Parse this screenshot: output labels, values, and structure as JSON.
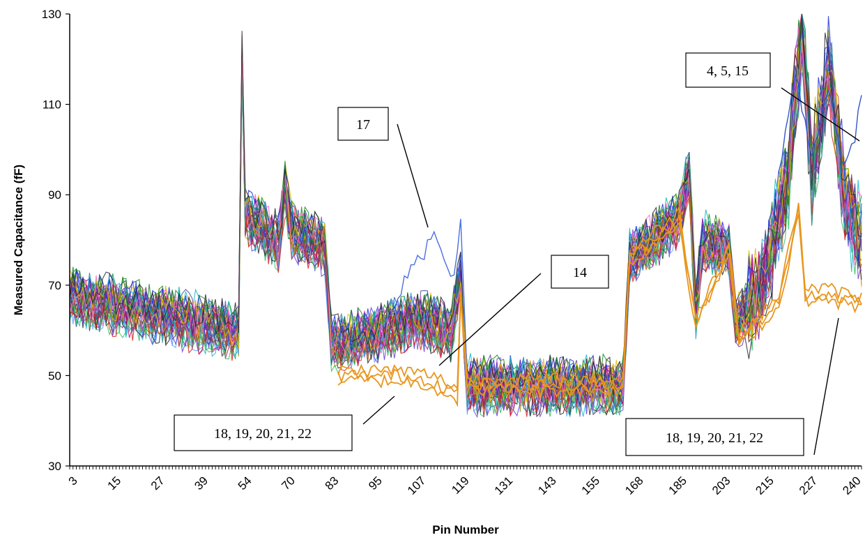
{
  "chart_data": {
    "type": "line",
    "title": "",
    "xlabel": "Pin Number",
    "ylabel": "Measured Capacitance (fF)",
    "xlim": [
      1,
      240
    ],
    "ylim": [
      30,
      130
    ],
    "y_ticks": [
      30,
      50,
      70,
      90,
      110,
      130
    ],
    "x_tick_labels": [
      "3",
      "15",
      "27",
      "39",
      "54",
      "70",
      "83",
      "95",
      "107",
      "119",
      "131",
      "143",
      "155",
      "168",
      "185",
      "203",
      "215",
      "227",
      "240"
    ],
    "grid": false,
    "legend": "none",
    "series_groups": [
      {
        "description_color": "mixed",
        "points": [
          [
            1,
            68
          ],
          [
            52,
            60
          ],
          [
            53,
            120
          ],
          [
            54,
            86
          ],
          [
            64,
            80
          ],
          [
            66,
            92
          ],
          [
            68,
            82
          ],
          [
            78,
            79
          ],
          [
            80,
            57
          ],
          [
            95,
            60
          ],
          [
            107,
            63
          ],
          [
            116,
            60
          ],
          [
            119,
            72
          ],
          [
            121,
            48
          ],
          [
            168,
            48
          ],
          [
            170,
            76
          ],
          [
            185,
            85
          ],
          [
            188,
            95
          ],
          [
            190,
            65
          ],
          [
            192,
            80
          ],
          [
            200,
            78
          ],
          [
            202,
            62
          ],
          [
            210,
            70
          ],
          [
            218,
            95
          ],
          [
            222,
            128
          ],
          [
            225,
            95
          ],
          [
            230,
            118
          ],
          [
            235,
            90
          ],
          [
            240,
            80
          ]
        ]
      }
    ],
    "highlighted_series": [
      {
        "name": "17",
        "color": "#4a6fe0",
        "points": [
          [
            96,
            62
          ],
          [
            100,
            68
          ],
          [
            104,
            76
          ],
          [
            108,
            78
          ],
          [
            111,
            84
          ],
          [
            114,
            77
          ],
          [
            117,
            72
          ],
          [
            119,
            86
          ],
          [
            121,
            50
          ]
        ]
      },
      {
        "name": "4, 5, 15",
        "color": "#3355cc",
        "points": [
          [
            215,
            96
          ],
          [
            220,
            118
          ],
          [
            225,
            100
          ],
          [
            230,
            115
          ],
          [
            234,
            98
          ],
          [
            238,
            104
          ],
          [
            240,
            113
          ]
        ]
      },
      {
        "name": "18, 19, 20, 21, 22",
        "color": "#e8961e",
        "points": [
          [
            82,
            50
          ],
          [
            90,
            50
          ],
          [
            100,
            50
          ],
          [
            110,
            49
          ],
          [
            118,
            46
          ],
          [
            119,
            68
          ],
          [
            121,
            48
          ],
          [
            168,
            48
          ],
          [
            170,
            76
          ],
          [
            185,
            85
          ],
          [
            190,
            62
          ],
          [
            200,
            78
          ],
          [
            203,
            58
          ],
          [
            215,
            66
          ],
          [
            221,
            87
          ],
          [
            223,
            68
          ],
          [
            230,
            68
          ],
          [
            240,
            66
          ]
        ]
      }
    ],
    "annotations": [
      {
        "label": "17"
      },
      {
        "label": "14"
      },
      {
        "label": "4, 5, 15"
      },
      {
        "label": "18, 19, 20, 21, 22"
      },
      {
        "label": "18, 19, 20, 21, 22"
      }
    ]
  }
}
